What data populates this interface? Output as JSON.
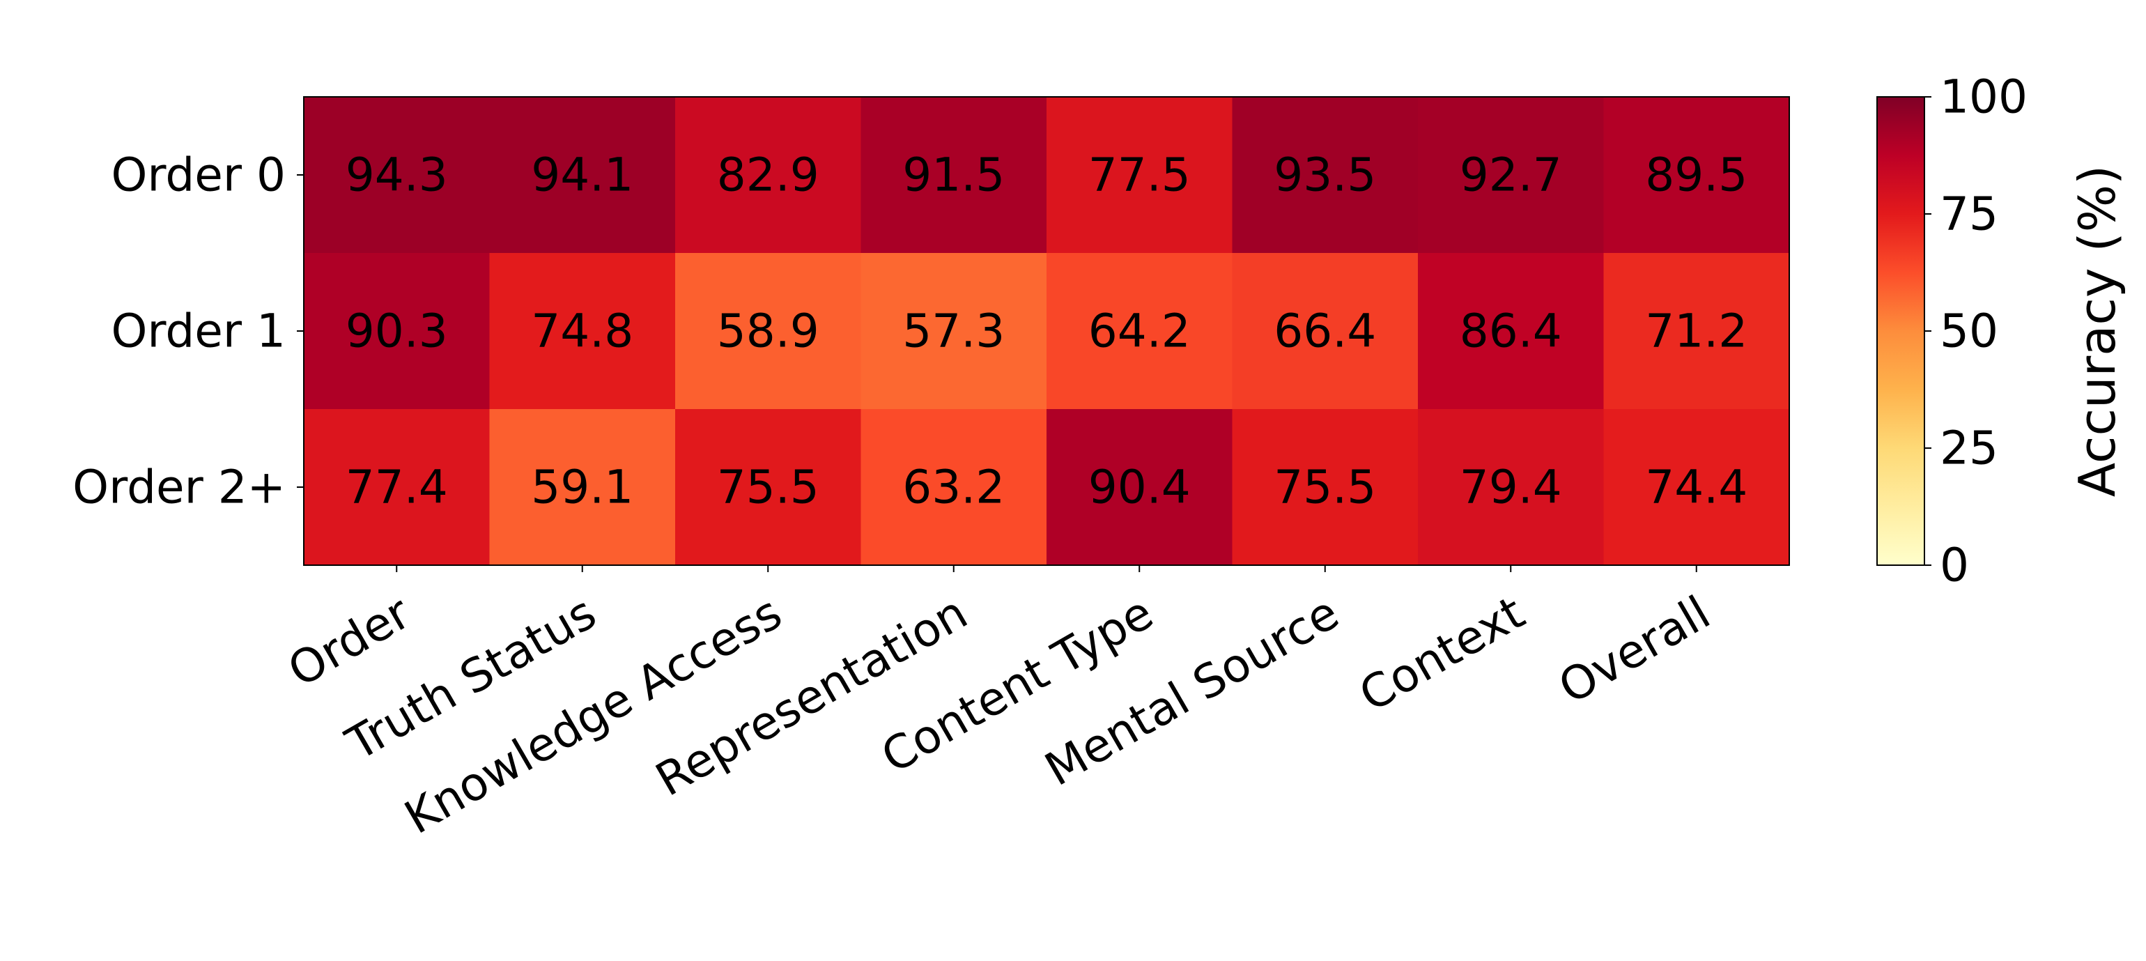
{
  "chart_data": {
    "type": "heatmap",
    "title": "",
    "xlabel": "",
    "ylabel": "",
    "rows": [
      "Order 0",
      "Order 1",
      "Order 2+"
    ],
    "columns": [
      "Order",
      "Truth Status",
      "Knowledge Access",
      "Representation",
      "Content Type",
      "Mental Source",
      "Context",
      "Overall"
    ],
    "values": [
      [
        94.3,
        94.1,
        82.9,
        91.5,
        77.5,
        93.5,
        92.7,
        89.5
      ],
      [
        90.3,
        74.8,
        58.9,
        57.3,
        64.2,
        66.4,
        86.4,
        71.2
      ],
      [
        77.4,
        59.1,
        75.5,
        63.2,
        90.4,
        75.5,
        79.4,
        74.4
      ]
    ],
    "value_format": "0.1f",
    "colormap": "YlOrRd",
    "colorbar": {
      "label": "Accuracy (%)",
      "range": [
        0,
        100
      ],
      "ticks": [
        0,
        25,
        50,
        75,
        100
      ]
    },
    "grid": false,
    "legend": "none"
  }
}
